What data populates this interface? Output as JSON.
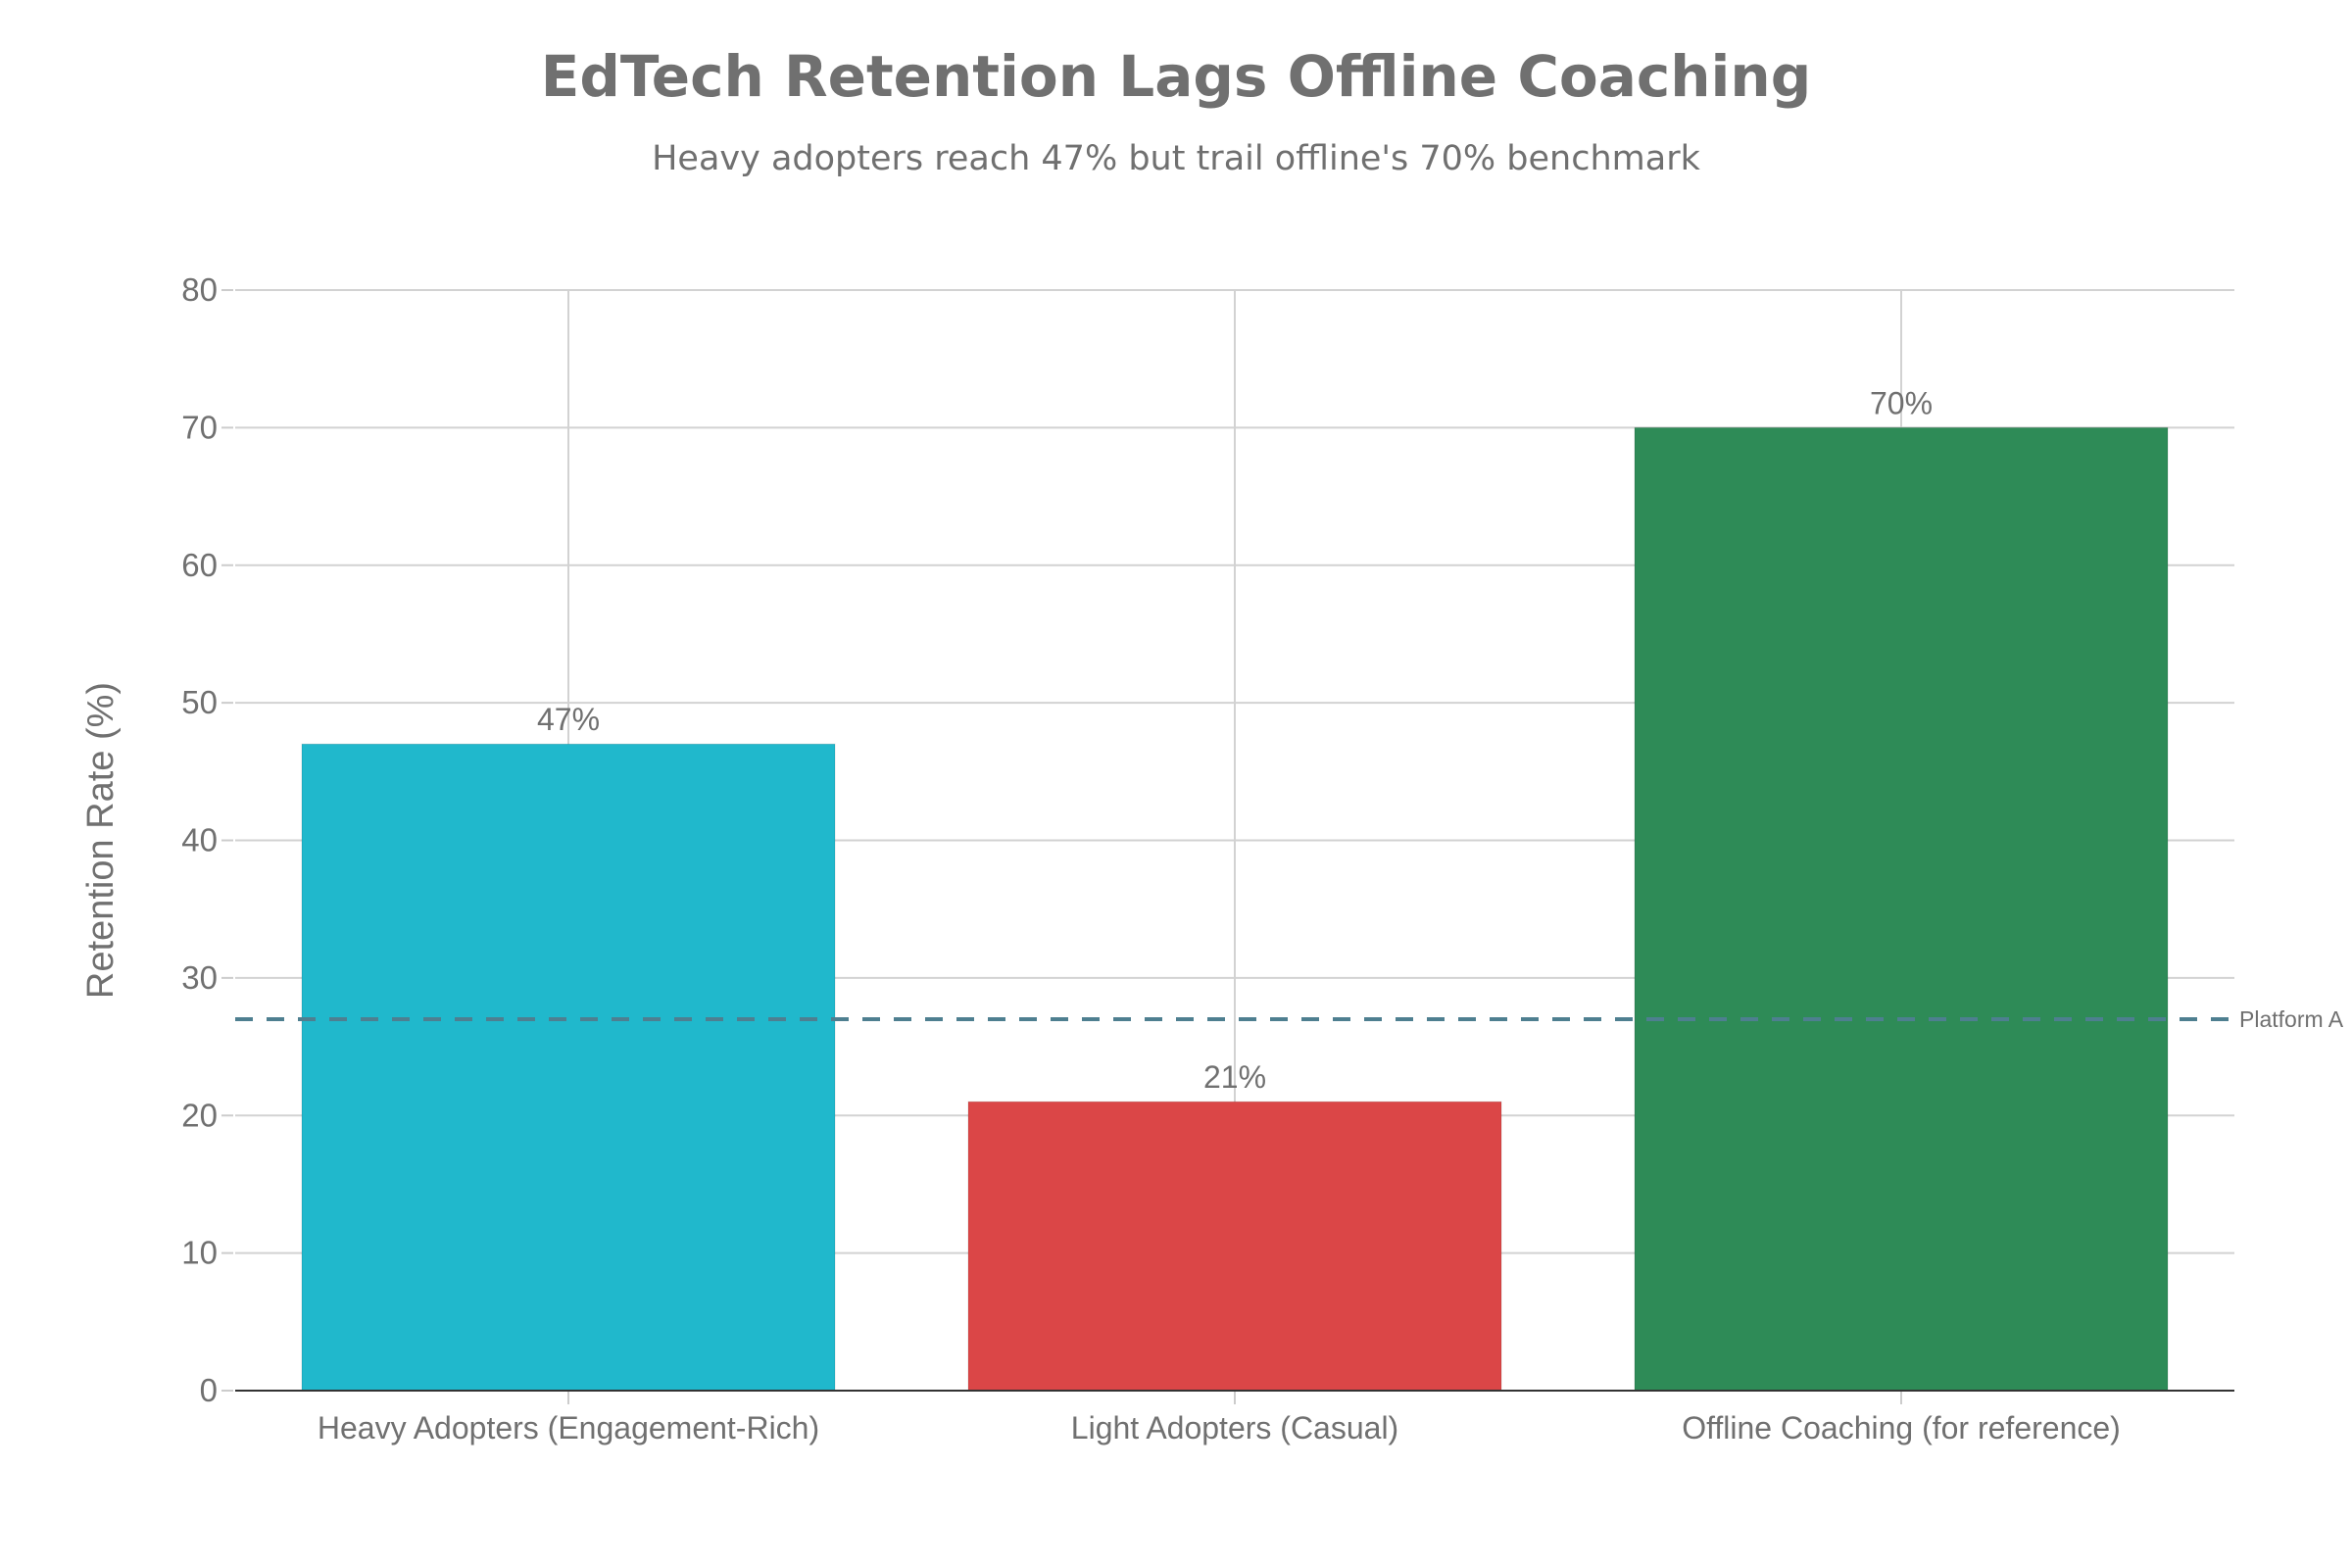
{
  "chart_data": {
    "type": "bar",
    "title": "EdTech Retention Lags Offline Coaching",
    "subtitle": "Heavy adopters reach 47% but trail offline's 70% benchmark",
    "xlabel": "",
    "ylabel": "Retention Rate (%)",
    "ylim": [
      0,
      80
    ],
    "yticks": [
      0,
      10,
      20,
      30,
      40,
      50,
      60,
      70,
      80
    ],
    "categories": [
      "Heavy Adopters (Engagement-Rich)",
      "Light Adopters (Casual)",
      "Offline Coaching (for reference)"
    ],
    "values": [
      47,
      21,
      70
    ],
    "data_labels": [
      "47%",
      "21%",
      "70%"
    ],
    "bar_colors": [
      "#20b8cc",
      "#db4647",
      "#2e8b57"
    ],
    "grid": true,
    "legend": "none",
    "reference_line": {
      "value": 27,
      "label": "Platform A",
      "style": "dashed",
      "color": "#4e7f90"
    }
  }
}
